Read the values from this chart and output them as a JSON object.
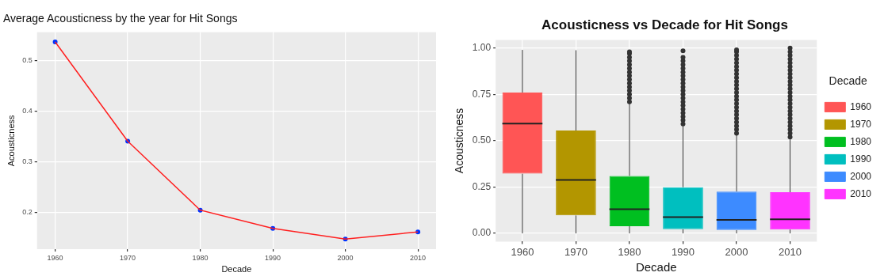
{
  "chart_data": [
    {
      "type": "line",
      "title": "Average Acousticness by the year for Hit Songs",
      "xlabel": "Decade",
      "ylabel": "Acousticness",
      "x": [
        1960,
        1970,
        1980,
        1990,
        2000,
        2010
      ],
      "xlim": [
        1957.5,
        2012.5
      ],
      "xticks": [
        1960,
        1970,
        1980,
        1990,
        2000,
        2010
      ],
      "ylim": [
        0.128,
        0.556
      ],
      "yticks": [
        0.2,
        0.3,
        0.4,
        0.5
      ],
      "grid": true,
      "legend": false,
      "series": [
        {
          "type": "line",
          "color": "#ff2020",
          "marker": "none",
          "values": [
            0.537,
            0.341,
            0.205,
            0.169,
            0.148,
            0.162
          ]
        },
        {
          "type": "scatter",
          "color": "#0033ff",
          "marker": "circle",
          "values": [
            0.537,
            0.341,
            0.205,
            0.169,
            0.148,
            0.162
          ]
        }
      ]
    },
    {
      "type": "box",
      "title": "Acousticness vs Decade for Hit Songs",
      "xlabel": "Decade",
      "ylabel": "Acousticness",
      "legend_title": "Decade",
      "legend": "right",
      "grid": true,
      "marker": "circle",
      "categories": [
        "1960",
        "1970",
        "1980",
        "1990",
        "2000",
        "2010"
      ],
      "ylim": [
        -0.044,
        1.044
      ],
      "yticks": [
        {
          "value": 0,
          "label": "0.00"
        },
        {
          "value": 0.25,
          "label": "0.25"
        },
        {
          "value": 0.5,
          "label": "0.50"
        },
        {
          "value": 0.75,
          "label": "0.75"
        },
        {
          "value": 1,
          "label": "1.00"
        }
      ],
      "series": [
        {
          "name": "1960",
          "color": "#ff5555",
          "boxes": [
            {
              "low": 0,
              "q1": 0.322,
              "median": 0.592,
              "q3": 0.76,
              "high": 0.99
            },
            null,
            null,
            null,
            null,
            null
          ]
        },
        {
          "name": "1970",
          "color": "#b39600",
          "boxes": [
            null,
            {
              "low": 0,
              "q1": 0.097,
              "median": 0.288,
              "q3": 0.555,
              "high": 0.988
            },
            null,
            null,
            null,
            null
          ]
        },
        {
          "name": "1980",
          "color": "#00bf20",
          "boxes": [
            null,
            null,
            {
              "low": 0,
              "q1": 0.039,
              "median": 0.13,
              "q3": 0.31,
              "high": 0.703,
              "outliers": [
                0.71,
                0.73,
                0.75,
                0.77,
                0.79,
                0.81,
                0.83,
                0.85,
                0.87,
                0.89,
                0.91,
                0.93,
                0.95,
                0.97,
                0.98
              ]
            },
            null,
            null,
            null
          ]
        },
        {
          "name": "1990",
          "color": "#00bfbf",
          "boxes": [
            null,
            null,
            null,
            {
              "low": 0,
              "q1": 0.023,
              "median": 0.088,
              "q3": 0.249,
              "high": 0.583,
              "outliers": [
                0.59,
                0.61,
                0.63,
                0.65,
                0.67,
                0.69,
                0.71,
                0.73,
                0.75,
                0.77,
                0.79,
                0.81,
                0.83,
                0.85,
                0.87,
                0.89,
                0.91,
                0.93,
                0.95,
                0.985
              ]
            },
            null,
            null
          ]
        },
        {
          "name": "2000",
          "color": "#3d8bff",
          "boxes": [
            null,
            null,
            null,
            null,
            {
              "low": 0,
              "q1": 0.018,
              "median": 0.073,
              "q3": 0.225,
              "high": 0.533,
              "outliers": [
                0.54,
                0.56,
                0.58,
                0.6,
                0.62,
                0.64,
                0.66,
                0.68,
                0.7,
                0.72,
                0.74,
                0.76,
                0.78,
                0.8,
                0.82,
                0.84,
                0.86,
                0.88,
                0.9,
                0.92,
                0.94,
                0.96,
                0.98,
                0.99
              ]
            },
            null
          ]
        },
        {
          "name": "2010",
          "color": "#ff33ff",
          "boxes": [
            null,
            null,
            null,
            null,
            null,
            {
              "low": 0,
              "q1": 0.021,
              "median": 0.076,
              "q3": 0.222,
              "high": 0.51,
              "outliers": [
                0.52,
                0.54,
                0.56,
                0.58,
                0.6,
                0.62,
                0.64,
                0.66,
                0.68,
                0.7,
                0.72,
                0.74,
                0.76,
                0.78,
                0.8,
                0.82,
                0.84,
                0.86,
                0.88,
                0.9,
                0.92,
                0.94,
                0.96,
                0.98,
                1.0
              ]
            }
          ]
        }
      ]
    }
  ]
}
